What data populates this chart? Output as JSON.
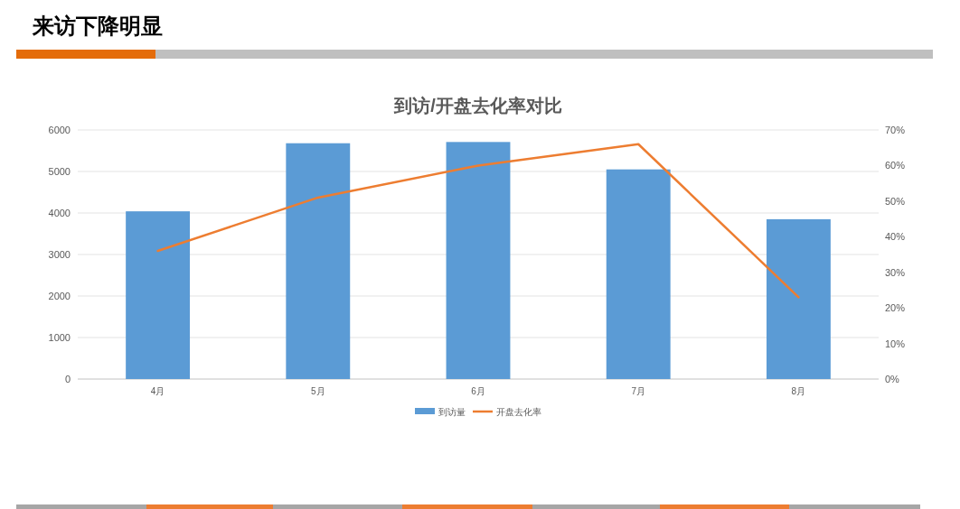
{
  "chart_data": {
    "type": "bar",
    "title": "来访下降明显",
    "subtitle": "到访/开盘去化率对比",
    "categories": [
      "4月",
      "5月",
      "6月",
      "7月",
      "8月"
    ],
    "series": [
      {
        "name": "到访量",
        "color": "#5b9bd5",
        "values": [
          4040,
          5680,
          5710,
          5050,
          3850
        ]
      },
      {
        "name": "开盘去化率",
        "type": "line",
        "axis": "y2",
        "color": "#ed7d31",
        "values": [
          36,
          51,
          60,
          66,
          23
        ]
      }
    ],
    "ylim": [
      0,
      6000
    ],
    "yticks": [
      0,
      1000,
      2000,
      3000,
      4000,
      5000,
      6000
    ],
    "y2lim": [
      0,
      70
    ],
    "y2ticks": [
      {
        "value": 0,
        "label": "0%"
      },
      {
        "value": 10,
        "label": "10%"
      },
      {
        "value": 20,
        "label": "20%"
      },
      {
        "value": 30,
        "label": "30%"
      },
      {
        "value": 40,
        "label": "40%"
      },
      {
        "value": 50,
        "label": "50%"
      },
      {
        "value": 60,
        "label": "60%"
      },
      {
        "value": 70,
        "label": "70%"
      }
    ],
    "grid": "y",
    "legend": "bottom"
  }
}
